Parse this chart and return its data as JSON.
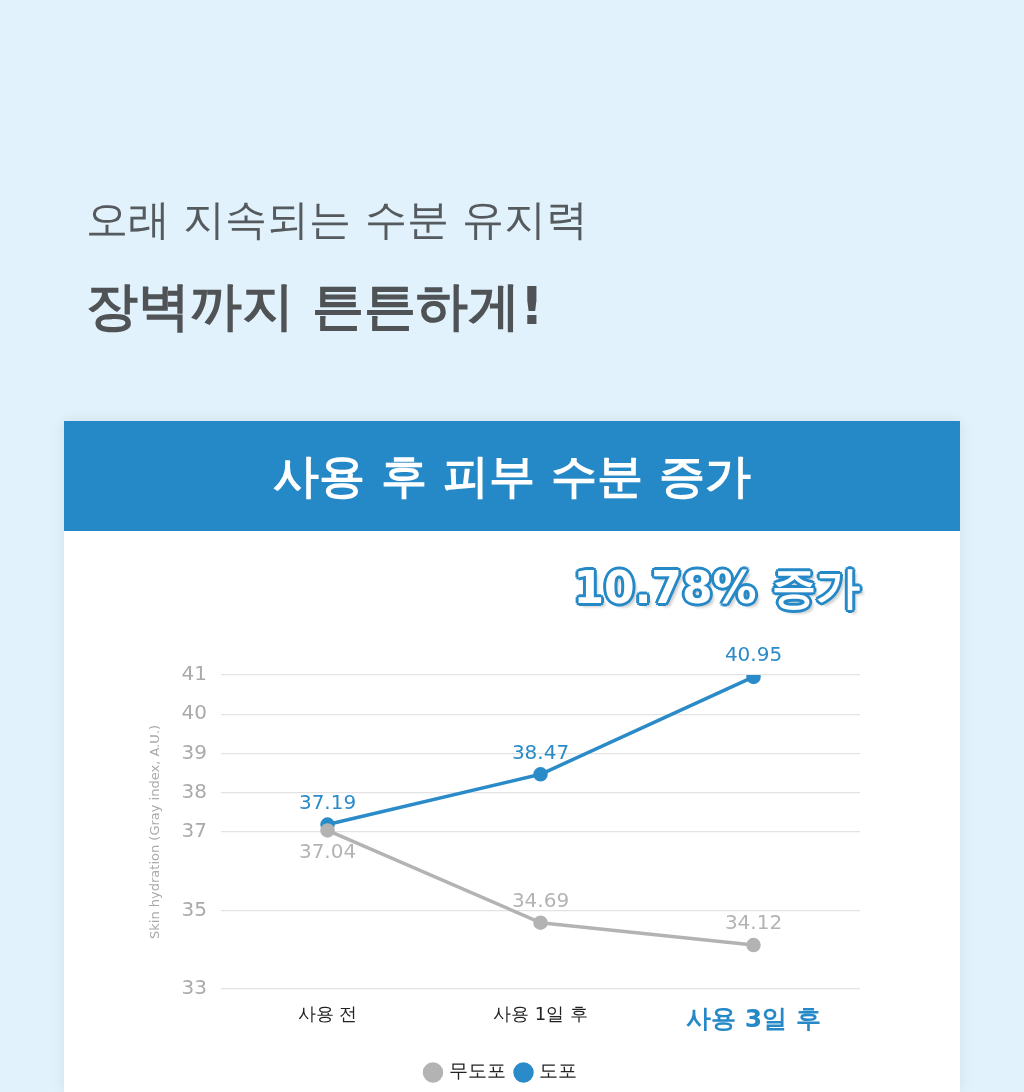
{
  "chart_data": {
    "type": "line",
    "title": "사용 후 피부 수분 증가",
    "annotations": [
      "오래 지속되는 수분 유지력",
      "장벽까지 튼튼하게!",
      "10.78% 증가"
    ],
    "categories": [
      "사용 전",
      "사용 1일 후",
      "사용 3일 후"
    ],
    "series": [
      {
        "name": "무도포",
        "color": "#b3b3b3",
        "values": [
          37.04,
          34.69,
          34.12
        ]
      },
      {
        "name": "도포",
        "color": "#2a8bc8",
        "values": [
          37.19,
          38.47,
          40.95
        ]
      }
    ],
    "ylabel": "Skin hydration (Gray index, A.U.)",
    "ylim": [
      33,
      41
    ],
    "yticks": [
      33,
      35,
      37,
      38,
      39,
      40,
      41
    ],
    "grid": "y",
    "legend": "bottom",
    "marker": "circle",
    "line_style": "solid",
    "data_labels": true
  }
}
